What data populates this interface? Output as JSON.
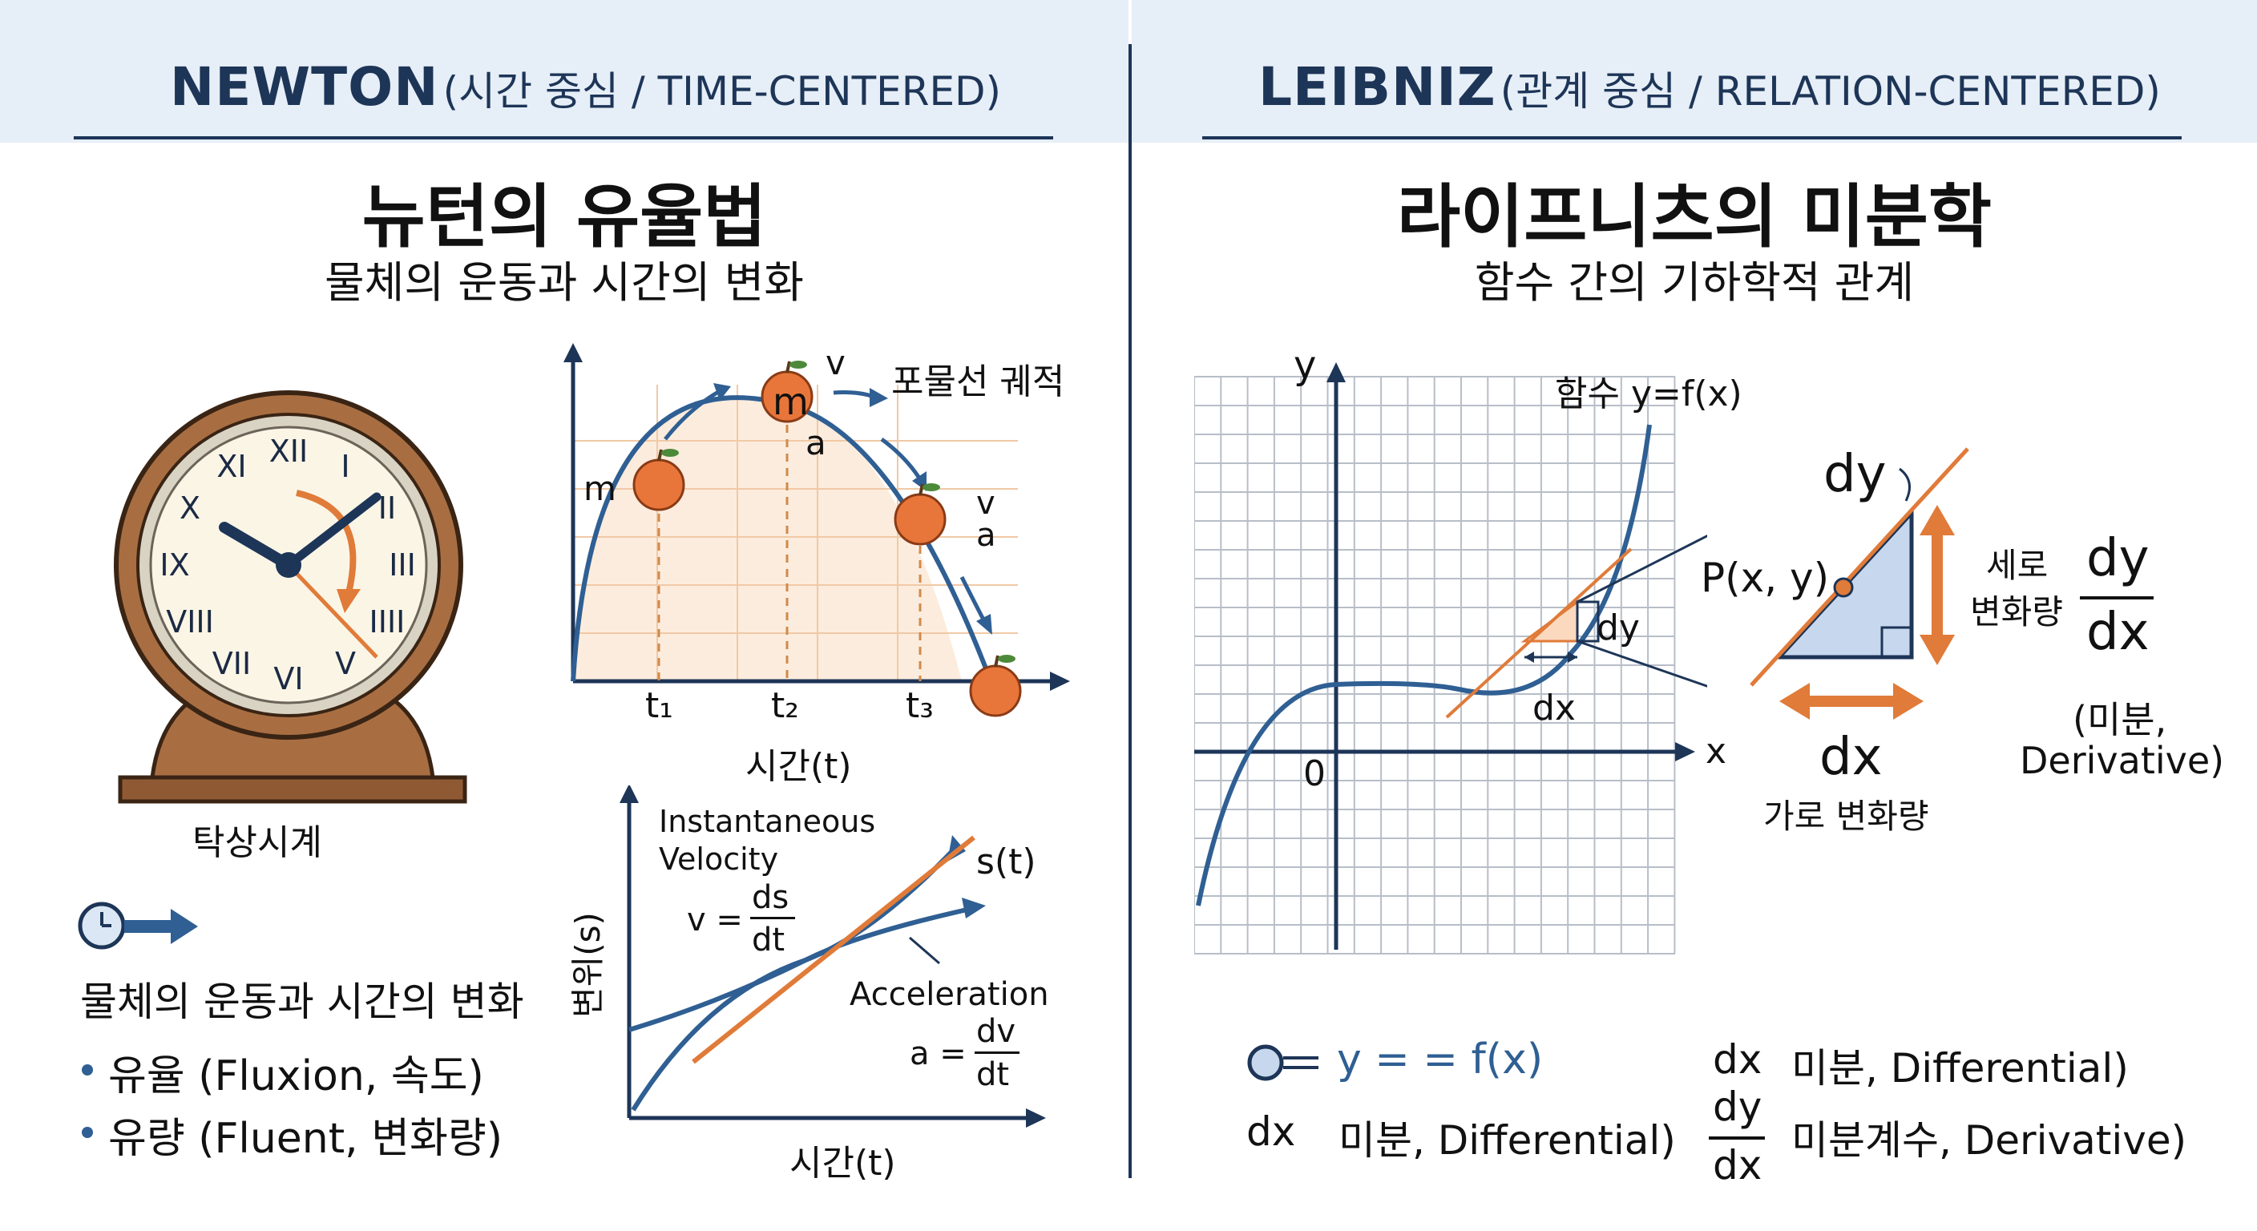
{
  "newton": {
    "header_bold": "NEWTON",
    "header_sub": "(시간 중심 / TIME-CENTERED)",
    "title": "뉴턴의 유율법",
    "subtitle": "물체의 운동과 시간의 변화",
    "clock_label": "탁상시계",
    "clock_numerals": [
      "XII",
      "I",
      "II",
      "III",
      "IIII",
      "V",
      "VI",
      "VII",
      "VIII",
      "IX",
      "X",
      "XI"
    ],
    "caption": "물체의 운동과 시간의 변화",
    "bullets": [
      "유율 (Fluxion, 속도)",
      "유량 (Fluent, 변화량)"
    ],
    "trajectory": {
      "label": "포물선 궤적",
      "mass": "m",
      "velocity": "v",
      "acceleration": "a",
      "ticks": [
        "t₁",
        "t₂",
        "t₃"
      ],
      "xlabel": "시간(t)"
    },
    "velocity_graph": {
      "ylabel": "변위(s)",
      "xlabel": "시간(t)",
      "curve_label": "s(t)",
      "inst_line1": "Instantaneous",
      "inst_line2": "Velocity",
      "v_lhs": "v =",
      "v_num": "ds",
      "v_den": "dt",
      "acc_label": "Acceleration",
      "a_lhs": "a =",
      "a_num": "dv",
      "a_den": "dt"
    }
  },
  "leibniz": {
    "header_bold": "LEIBNIZ",
    "header_sub": "(관계 중심 / RELATION-CENTERED)",
    "title": "라이프니츠의 미분학",
    "subtitle": "함수 간의 기하학적 관계",
    "graph": {
      "ylabel": "y",
      "xlabel": "x",
      "origin": "0",
      "function_label": "함수 y=f(x)",
      "dy_small": "dy",
      "dx_small": "dx"
    },
    "zoom": {
      "dy": "dy",
      "point": "P(x, y)",
      "vertical_label_1": "세로",
      "vertical_label_2": "변화량",
      "dx": "dx",
      "horizontal_label": "가로 변화량",
      "frac_num": "dy",
      "frac_den": "dx",
      "deriv_1": "(미분,",
      "deriv_2": "Derivative)"
    },
    "notation": {
      "y_eq": "y = = f(x)",
      "dx_left": "dx",
      "dx_left_desc": "미분, Differential)",
      "dx_right": "dx",
      "dx_right_desc": "미분, Differential)",
      "frac_num": "dy",
      "frac_den": "dx",
      "deriv_desc": "미분계수, Derivative)"
    }
  },
  "colors": {
    "navy": "#1d3557",
    "blue": "#2f5f93",
    "orange": "#e07b39",
    "header_bg": "#e6eef7",
    "wood": "#a86e42"
  }
}
